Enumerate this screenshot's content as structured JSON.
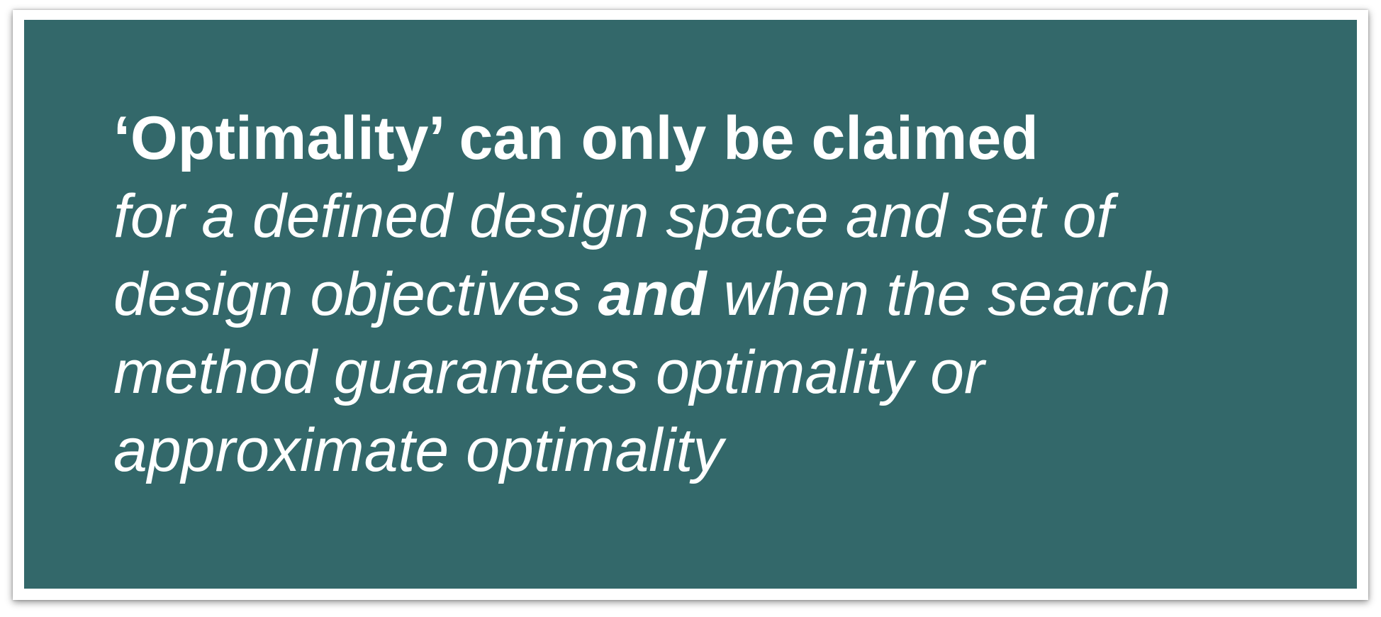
{
  "slide": {
    "heading": "‘Optimality’ can only be claimed",
    "line2": "for a defined design space and set of",
    "line3_a": "design objectives ",
    "line3_em": "and",
    "line3_b": " when the search",
    "line4": "method guarantees optimality or",
    "line5": "approximate optimality"
  },
  "colors": {
    "card_background": "#33686a",
    "text": "#ffffff",
    "frame": "#ffffff"
  }
}
